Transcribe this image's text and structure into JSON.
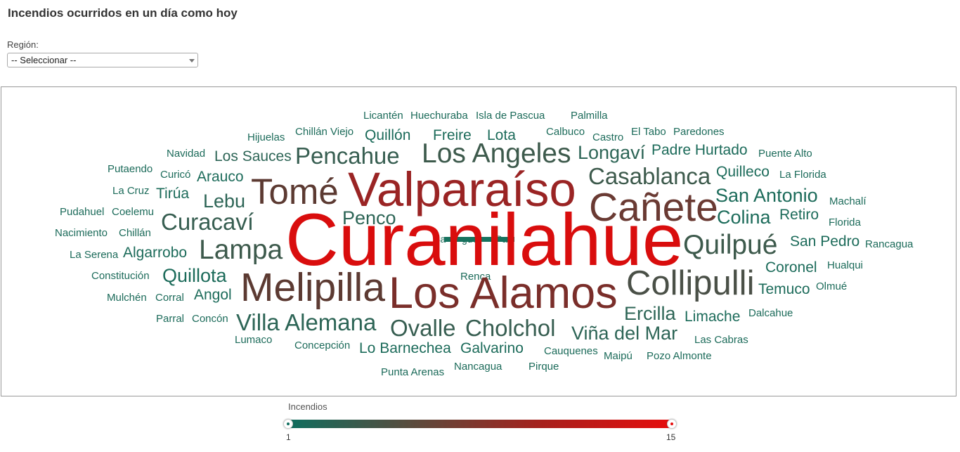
{
  "title": "Incendios ocurridos en un día como hoy",
  "filter": {
    "label": "Región:",
    "selected": "-- Seleccionar --"
  },
  "legend": {
    "title": "Incendios",
    "min": "1",
    "max": "15",
    "color_low": "#0f6e5f",
    "color_high": "#e60d0d"
  },
  "cloud_words": [
    "Licantén",
    "Huechuraba",
    "Isla de Pascua",
    "Palmilla",
    "Hijuelas",
    "Chillán Viejo",
    "Quillón",
    "Freire",
    "Lota",
    "Calbuco",
    "Castro",
    "El Tabo",
    "Paredones",
    "Navidad",
    "Los Sauces",
    "Pencahue",
    "Los Angeles",
    "Longaví",
    "Padre Hurtado",
    "Puente Alto",
    "Putaendo",
    "Curicó",
    "Arauco",
    "Casablanca",
    "Quilleco",
    "La Florida",
    "La Cruz",
    "Tirúa",
    "Tomé",
    "Valparaíso",
    "San Antonio",
    "Machalí",
    "Pudahuel",
    "Coelemu",
    "Lebu",
    "Cañete",
    "Colina",
    "Retiro",
    "Florida",
    "Nacimiento",
    "Chillán",
    "Curacaví",
    "Penco",
    "Curanilahue",
    "Quilpué",
    "San Pedro",
    "Rancagua",
    "La Serena",
    "Algarrobo",
    "Lampa",
    "Constitución",
    "Quillota",
    "Renca",
    "Coronel",
    "Hualqui",
    "Melipilla",
    "Los Alamos",
    "Collipulli",
    "Temuco",
    "Olmué",
    "Mulchén",
    "Corral",
    "Angol",
    "Ercilla",
    "Limache",
    "Dalcahue",
    "Parral",
    "Concón",
    "Villa Alemana",
    "Ovalle",
    "Cholchol",
    "Viña del Mar",
    "Las Cabras",
    "Lumaco",
    "Concepción",
    "Lo Barnechea",
    "Galvarino",
    "Cauquenes",
    "Maipú",
    "Pozo Almonte",
    "Punta Arenas",
    "Nancagua",
    "Pirque"
  ]
}
